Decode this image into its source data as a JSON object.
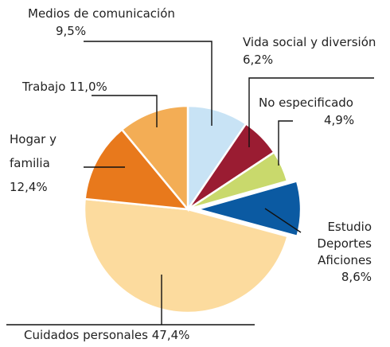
{
  "chart_data": {
    "type": "pie",
    "categories": [
      "Medios de comunicación",
      "Vida social y diversión",
      "No especificado",
      "Estudio Deportes Aficiones",
      "Cuidados personales",
      "Hogar y familia",
      "Trabajo"
    ],
    "values": [
      9.5,
      6.2,
      4.9,
      8.6,
      47.4,
      12.4,
      11.0
    ],
    "value_labels": [
      "9,5%",
      "6,2%",
      "4,9%",
      "8,6%",
      "47,4%",
      "12,4%",
      "11,0%"
    ],
    "colors": [
      "#c8e3f5",
      "#9a1c32",
      "#c9d96c",
      "#0b5aa2",
      "#fcdb9e",
      "#e8791c",
      "#f3ad55"
    ],
    "exploded": [
      3
    ]
  }
}
